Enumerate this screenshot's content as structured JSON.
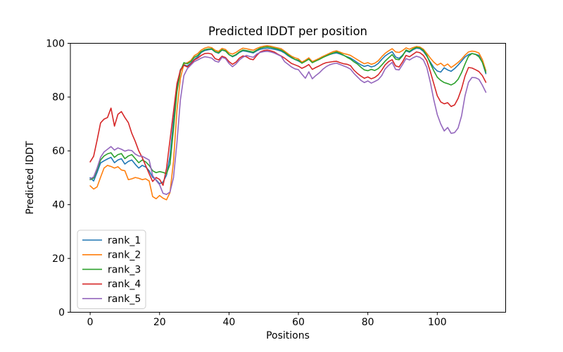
{
  "chart_data": {
    "type": "line",
    "title": "Predicted lDDT per position",
    "xlabel": "Positions",
    "ylabel": "Predicted lDDT",
    "background": "#ffffff",
    "grid": false,
    "legend_position": "lower left",
    "line_width": 1.5,
    "xlim": [
      -5.7,
      119.7
    ],
    "ylim": [
      0,
      100
    ],
    "xticks": [
      0,
      20,
      40,
      60,
      80,
      100
    ],
    "yticks": [
      0,
      20,
      40,
      60,
      80,
      100
    ],
    "x": [
      0,
      1,
      2,
      3,
      4,
      5,
      6,
      7,
      8,
      9,
      10,
      11,
      12,
      13,
      14,
      15,
      16,
      17,
      18,
      19,
      20,
      21,
      22,
      23,
      24,
      25,
      26,
      27,
      28,
      29,
      30,
      31,
      32,
      33,
      34,
      35,
      36,
      37,
      38,
      39,
      40,
      41,
      42,
      43,
      44,
      45,
      46,
      47,
      48,
      49,
      50,
      51,
      52,
      53,
      54,
      55,
      56,
      57,
      58,
      59,
      60,
      61,
      62,
      63,
      64,
      65,
      66,
      67,
      68,
      69,
      70,
      71,
      72,
      73,
      74,
      75,
      76,
      77,
      78,
      79,
      80,
      81,
      82,
      83,
      84,
      85,
      86,
      87,
      88,
      89,
      90,
      91,
      92,
      93,
      94,
      95,
      96,
      97,
      98,
      99,
      100,
      101,
      102,
      103,
      104,
      105,
      106,
      107,
      108,
      109,
      110,
      111,
      112,
      113,
      114
    ],
    "series": [
      {
        "name": "rank_1",
        "color": "#1f77b4",
        "values": [
          50.0,
          48.8,
          52.0,
          55.5,
          56.3,
          57.0,
          57.6,
          55.6,
          56.6,
          57.1,
          55.1,
          56.1,
          56.6,
          55.0,
          53.6,
          54.6,
          54.0,
          52.6,
          50.2,
          49.2,
          47.8,
          48.4,
          51.0,
          58.0,
          71.0,
          84.0,
          90.2,
          92.0,
          91.6,
          92.6,
          94.0,
          95.0,
          96.6,
          97.3,
          97.6,
          97.8,
          96.8,
          96.3,
          97.5,
          97.1,
          95.8,
          95.0,
          95.6,
          96.6,
          97.2,
          97.0,
          96.7,
          96.4,
          97.2,
          97.8,
          98.0,
          98.2,
          98.0,
          97.8,
          97.5,
          97.1,
          96.4,
          95.4,
          94.6,
          94.0,
          93.4,
          92.7,
          93.4,
          94.2,
          92.9,
          93.5,
          94.1,
          94.8,
          95.3,
          95.8,
          96.2,
          96.4,
          96.0,
          95.5,
          95.0,
          94.5,
          93.7,
          92.8,
          92.0,
          91.4,
          91.8,
          91.2,
          91.6,
          92.5,
          94.0,
          95.3,
          96.2,
          96.9,
          94.9,
          94.4,
          95.6,
          97.2,
          96.7,
          97.6,
          98.2,
          98.0,
          97.0,
          95.2,
          93.0,
          91.0,
          89.7,
          89.3,
          90.9,
          90.1,
          89.6,
          90.6,
          91.9,
          93.4,
          94.9,
          95.8,
          96.2,
          95.9,
          95.5,
          92.9,
          88.7
        ]
      },
      {
        "name": "rank_2",
        "color": "#ff7f0e",
        "values": [
          47.0,
          45.8,
          46.6,
          50.2,
          53.6,
          54.6,
          54.2,
          53.6,
          54.1,
          52.9,
          52.6,
          49.3,
          49.6,
          50.1,
          49.8,
          49.3,
          49.6,
          48.8,
          43.0,
          42.2,
          43.4,
          42.4,
          41.8,
          44.5,
          56.0,
          75.0,
          87.0,
          92.3,
          92.8,
          93.6,
          95.4,
          96.2,
          97.5,
          98.2,
          98.6,
          98.4,
          97.4,
          97.0,
          98.1,
          97.7,
          96.4,
          96.0,
          96.6,
          97.5,
          98.2,
          98.0,
          97.7,
          97.4,
          98.1,
          98.6,
          98.9,
          99.1,
          98.9,
          98.6,
          98.3,
          98.0,
          97.1,
          96.1,
          95.2,
          94.6,
          94.2,
          93.0,
          93.7,
          94.6,
          93.2,
          93.8,
          94.4,
          95.1,
          95.7,
          96.3,
          96.9,
          97.2,
          96.7,
          96.2,
          95.9,
          95.5,
          94.7,
          93.9,
          93.1,
          92.4,
          92.8,
          92.2,
          92.6,
          93.5,
          95.0,
          96.3,
          97.2,
          98.0,
          96.8,
          96.6,
          97.3,
          98.3,
          97.8,
          98.4,
          98.8,
          98.6,
          97.8,
          96.2,
          94.5,
          93.0,
          91.9,
          92.6,
          91.5,
          92.3,
          91.0,
          91.9,
          92.9,
          94.1,
          95.6,
          96.8,
          97.1,
          96.9,
          96.4,
          93.9,
          89.8
        ]
      },
      {
        "name": "rank_3",
        "color": "#2ca02c",
        "values": [
          49.3,
          49.9,
          53.0,
          56.6,
          58.1,
          58.9,
          59.3,
          57.6,
          58.6,
          59.0,
          57.1,
          58.1,
          58.6,
          57.1,
          55.6,
          56.6,
          55.9,
          54.6,
          52.6,
          51.9,
          52.3,
          52.0,
          51.5,
          55.0,
          68.0,
          82.0,
          89.6,
          92.8,
          92.4,
          93.2,
          94.8,
          95.5,
          96.9,
          97.6,
          97.9,
          98.0,
          96.9,
          96.5,
          97.6,
          97.2,
          95.8,
          95.2,
          95.8,
          96.8,
          97.5,
          97.3,
          97.0,
          96.7,
          97.5,
          98.2,
          98.5,
          98.7,
          98.5,
          98.2,
          97.9,
          97.5,
          96.7,
          95.7,
          94.8,
          94.0,
          93.7,
          92.6,
          93.3,
          94.1,
          92.8,
          93.4,
          94.0,
          94.7,
          95.3,
          95.9,
          96.4,
          96.8,
          96.3,
          95.6,
          94.8,
          94.1,
          93.1,
          92.3,
          91.1,
          90.1,
          89.8,
          90.3,
          89.9,
          90.6,
          91.9,
          93.4,
          94.6,
          95.8,
          94.1,
          93.9,
          95.3,
          97.5,
          97.0,
          97.9,
          98.5,
          98.3,
          97.4,
          95.5,
          92.5,
          89.8,
          87.4,
          86.2,
          85.4,
          85.0,
          84.5,
          85.2,
          86.6,
          89.1,
          92.3,
          95.2,
          96.2,
          95.9,
          95.0,
          92.9,
          89.2
        ]
      },
      {
        "name": "rank_4",
        "color": "#d62728",
        "values": [
          55.9,
          58.0,
          64.0,
          70.4,
          71.8,
          72.4,
          75.9,
          69.2,
          73.6,
          74.6,
          72.4,
          70.5,
          66.5,
          63.5,
          60.0,
          57.5,
          54.5,
          51.5,
          48.6,
          50.1,
          49.4,
          47.2,
          53.5,
          64.0,
          74.5,
          85.0,
          90.0,
          91.8,
          91.2,
          92.3,
          93.8,
          94.5,
          95.5,
          96.2,
          96.3,
          96.0,
          94.3,
          93.8,
          95.2,
          94.7,
          93.2,
          92.2,
          93.0,
          94.5,
          95.3,
          95.0,
          94.2,
          93.9,
          95.5,
          96.8,
          97.3,
          97.5,
          97.2,
          96.8,
          96.0,
          95.3,
          94.5,
          93.5,
          92.5,
          92.0,
          91.5,
          90.7,
          91.3,
          92.1,
          90.3,
          91.0,
          91.6,
          92.3,
          92.8,
          93.0,
          93.2,
          93.3,
          92.8,
          92.4,
          92.2,
          91.7,
          90.0,
          88.8,
          87.8,
          87.0,
          87.5,
          86.8,
          87.3,
          88.3,
          90.0,
          92.0,
          93.2,
          93.9,
          91.6,
          91.2,
          93.1,
          95.5,
          95.0,
          95.9,
          96.8,
          96.5,
          95.5,
          93.5,
          89.5,
          85.0,
          80.5,
          78.2,
          77.5,
          77.9,
          76.5,
          77.1,
          79.5,
          83.1,
          87.8,
          91.0,
          90.8,
          90.2,
          89.5,
          88.0,
          85.5
        ]
      },
      {
        "name": "rank_5",
        "color": "#9467bd",
        "values": [
          49.6,
          50.3,
          53.6,
          57.6,
          59.6,
          60.6,
          61.6,
          60.3,
          61.1,
          60.6,
          59.9,
          60.3,
          60.1,
          58.8,
          58.1,
          58.0,
          57.3,
          56.6,
          50.8,
          49.0,
          47.4,
          44.2,
          43.8,
          44.7,
          50.0,
          63.0,
          79.0,
          88.0,
          90.6,
          91.9,
          93.2,
          93.8,
          94.5,
          95.0,
          94.8,
          94.5,
          93.4,
          93.0,
          94.8,
          94.3,
          92.5,
          91.3,
          92.3,
          93.8,
          94.8,
          95.5,
          95.1,
          94.8,
          96.0,
          96.6,
          96.9,
          97.0,
          96.8,
          96.4,
          95.8,
          95.2,
          93.2,
          92.2,
          91.2,
          90.5,
          90.2,
          88.5,
          87.0,
          89.4,
          86.8,
          88.0,
          89.0,
          90.3,
          91.3,
          92.0,
          92.4,
          92.6,
          92.1,
          91.6,
          91.1,
          90.4,
          88.8,
          87.5,
          86.2,
          85.4,
          86.0,
          85.2,
          85.8,
          86.5,
          88.0,
          90.5,
          91.8,
          92.9,
          90.3,
          90.1,
          92.1,
          94.3,
          93.8,
          94.6,
          95.2,
          94.8,
          93.8,
          91.0,
          85.5,
          79.0,
          73.5,
          70.0,
          67.4,
          68.7,
          66.5,
          66.8,
          68.5,
          73.0,
          80.5,
          85.5,
          87.3,
          87.2,
          86.6,
          84.4,
          81.8
        ]
      }
    ]
  }
}
